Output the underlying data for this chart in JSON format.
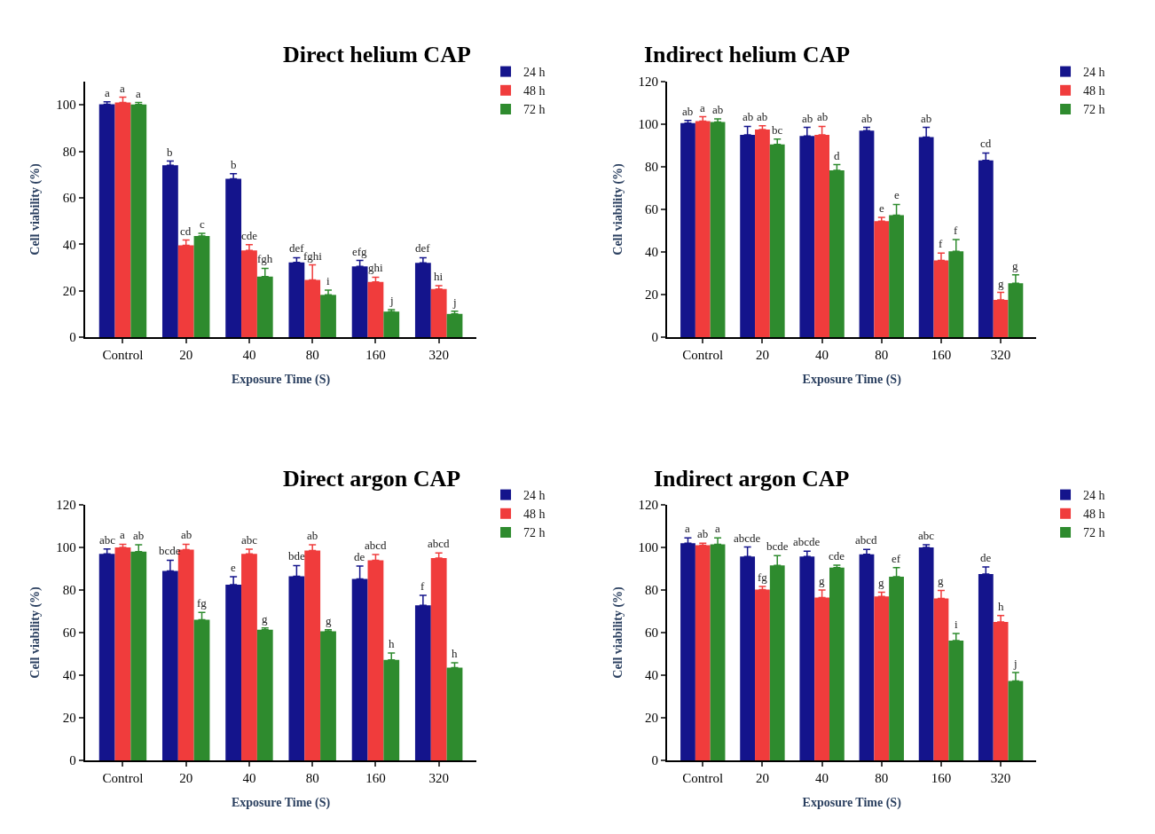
{
  "chart_data": [
    {
      "type": "bar",
      "title": "Direct helium CAP",
      "xlabel": "Exposure Time (S)",
      "ylabel": "Cell viability (%)",
      "categories": [
        "Control",
        "20",
        "40",
        "80",
        "160",
        "320"
      ],
      "ylim": [
        0,
        110
      ],
      "yticks": [
        0,
        20,
        40,
        60,
        80,
        100
      ],
      "legend": "top right",
      "series": [
        {
          "name": "24 h",
          "color": "#14148c",
          "values": [
            100.3,
            74,
            68.2,
            32.2,
            30.5,
            32
          ],
          "errors": [
            1,
            1.8,
            2.2,
            2,
            2.5,
            2.2
          ],
          "value_labels": [
            "a",
            "b",
            "b",
            "def",
            "efg",
            "def"
          ]
        },
        {
          "name": "48 h",
          "color": "#f03c3c",
          "values": [
            101,
            39.5,
            37.3,
            24.6,
            23.8,
            20.7
          ],
          "errors": [
            2.3,
            2.3,
            2.5,
            6.5,
            2,
            1.5
          ],
          "value_labels": [
            "a",
            "cd",
            "cde",
            "fghi",
            "ghi",
            "hi"
          ]
        },
        {
          "name": "72 h",
          "color": "#2e8b2e",
          "values": [
            100.2,
            43.5,
            26.1,
            18.2,
            11.0,
            10.0
          ],
          "errors": [
            0.8,
            1.2,
            3.5,
            2,
            0.8,
            1.2
          ],
          "value_labels": [
            "a",
            "c",
            "fgh",
            "i",
            "j",
            "j"
          ]
        }
      ]
    },
    {
      "type": "bar",
      "title": "Indirect helium CAP",
      "xlabel": "Exposure Time (S)",
      "ylabel": "Cell viability (%)",
      "categories": [
        "Control",
        "20",
        "40",
        "80",
        "160",
        "320"
      ],
      "ylim": [
        0,
        120
      ],
      "yticks": [
        0,
        20,
        40,
        60,
        80,
        100,
        120
      ],
      "legend": "top right",
      "series": [
        {
          "name": "24 h",
          "color": "#14148c",
          "values": [
            100.5,
            95,
            94.5,
            97,
            94,
            83
          ],
          "errors": [
            1.3,
            4,
            4,
            1.5,
            4.5,
            3.5
          ],
          "value_labels": [
            "ab",
            "ab",
            "ab",
            "ab",
            "ab",
            "cd"
          ]
        },
        {
          "name": "48 h",
          "color": "#f03c3c",
          "values": [
            101.5,
            97.5,
            95,
            54.5,
            36,
            17.5
          ],
          "errors": [
            2,
            1.8,
            4,
            1.8,
            3.5,
            3.5
          ],
          "value_labels": [
            "a",
            "ab",
            "ab",
            "e",
            "f",
            "g"
          ]
        },
        {
          "name": "72 h",
          "color": "#2e8b2e",
          "values": [
            101,
            90.5,
            78.3,
            57.3,
            40.3,
            25.3
          ],
          "errors": [
            1.5,
            2.5,
            2.7,
            5,
            5.5,
            4
          ],
          "value_labels": [
            "ab",
            "bc",
            "d",
            "e",
            "f",
            "g"
          ]
        }
      ]
    },
    {
      "type": "bar",
      "title": "Direct argon CAP",
      "xlabel": "Exposure Time (S)",
      "ylabel": "Cell viability (%)",
      "categories": [
        "Control",
        "20",
        "40",
        "80",
        "160",
        "320"
      ],
      "ylim": [
        0,
        120
      ],
      "yticks": [
        0,
        20,
        40,
        60,
        80,
        100,
        120
      ],
      "legend": "top right",
      "series": [
        {
          "name": "24 h",
          "color": "#14148c",
          "values": [
            97,
            89,
            82.5,
            86.5,
            85.2,
            72.8
          ],
          "errors": [
            2.3,
            5,
            3.8,
            5,
            6,
            4.7
          ],
          "value_labels": [
            "abc",
            "bcde",
            "e",
            "bde",
            "de",
            "f"
          ]
        },
        {
          "name": "48 h",
          "color": "#f03c3c",
          "values": [
            100,
            99,
            97,
            98.5,
            94,
            95
          ],
          "errors": [
            1.5,
            2.5,
            2.2,
            2.8,
            2.7,
            2.4
          ],
          "value_labels": [
            "a",
            "ab",
            "abc",
            "ab",
            "abcd",
            "abcd"
          ]
        },
        {
          "name": "72 h",
          "color": "#2e8b2e",
          "values": [
            98,
            66,
            61.4,
            60.6,
            47.2,
            43.5
          ],
          "errors": [
            3.2,
            3.5,
            0.8,
            0.8,
            3.2,
            2.3
          ],
          "value_labels": [
            "ab",
            "fg",
            "g",
            "g",
            "h",
            "h"
          ]
        }
      ]
    },
    {
      "type": "bar",
      "title": "Indirect argon CAP",
      "xlabel": "Exposure Time (S)",
      "ylabel": "Cell viability (%)",
      "categories": [
        "Control",
        "20",
        "40",
        "80",
        "160",
        "320"
      ],
      "ylim": [
        0,
        120
      ],
      "yticks": [
        0,
        20,
        40,
        60,
        80,
        100,
        120
      ],
      "legend": "top right",
      "series": [
        {
          "name": "24 h",
          "color": "#14148c",
          "values": [
            102,
            95.7,
            95.7,
            96.8,
            100,
            87.5
          ],
          "errors": [
            2.5,
            4.5,
            2.5,
            2.3,
            1.2,
            3.3
          ],
          "value_labels": [
            "a",
            "abcde",
            "abcde",
            "abcd",
            "abc",
            "de"
          ]
        },
        {
          "name": "48 h",
          "color": "#f03c3c",
          "values": [
            101,
            80.2,
            76.5,
            77,
            76,
            65
          ],
          "errors": [
            1,
            1.5,
            3.5,
            2,
            3.8,
            3
          ],
          "value_labels": [
            "ab",
            "fg",
            "g",
            "g",
            "g",
            "h"
          ]
        },
        {
          "name": "72 h",
          "color": "#2e8b2e",
          "values": [
            101.5,
            91.6,
            90.5,
            86.3,
            56.3,
            37.3
          ],
          "errors": [
            3,
            4.5,
            1.2,
            4.2,
            3.3,
            4
          ],
          "value_labels": [
            "a",
            "bcde",
            "cde",
            "ef",
            "i",
            "j"
          ]
        }
      ]
    }
  ]
}
